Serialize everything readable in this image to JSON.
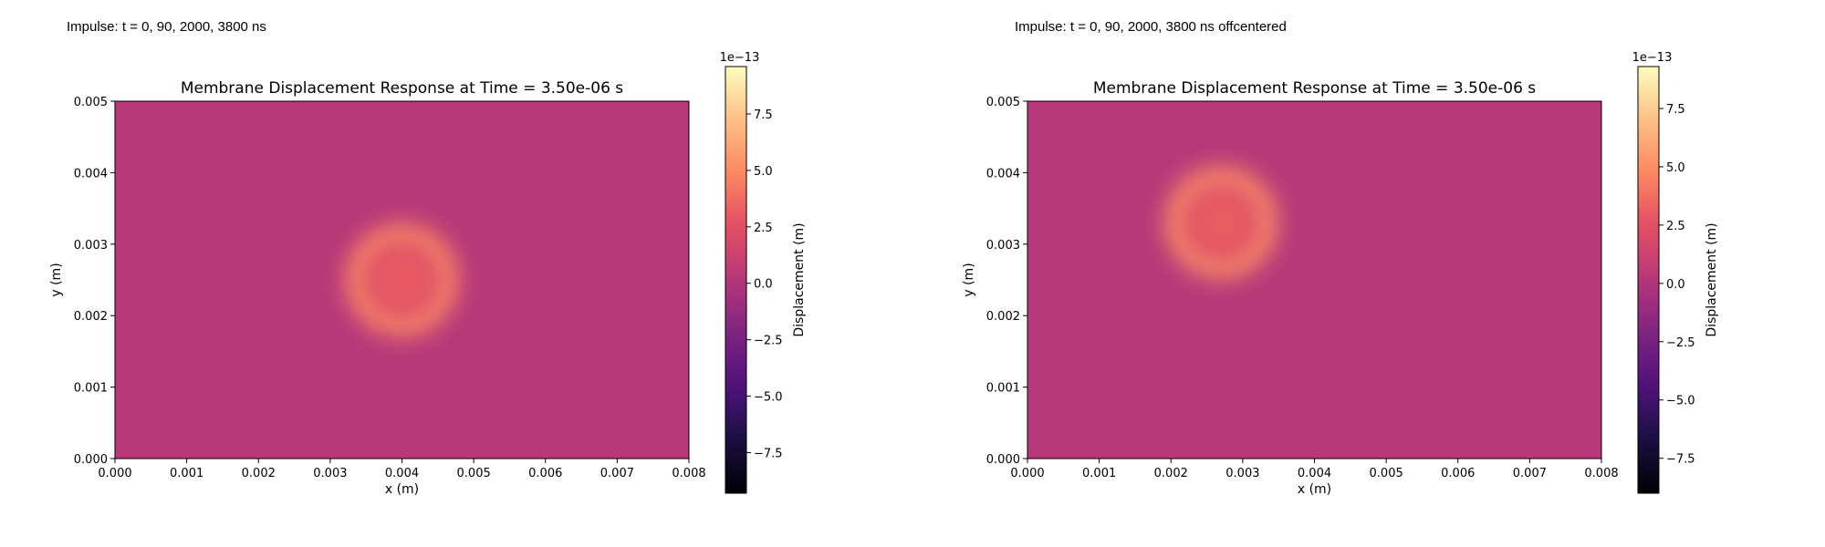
{
  "figure": {
    "captions": [
      "Impulse: t = 0, 90, 2000, 3800 ns",
      "Impulse: t = 0, 90, 2000, 3800 ns offcentered"
    ]
  },
  "chart_data": [
    {
      "type": "heatmap",
      "title": "Membrane Displacement Response at Time = 3.50e-06 s",
      "xlabel": "x (m)",
      "ylabel": "y (m)",
      "xlim": [
        0,
        0.008
      ],
      "ylim": [
        0,
        0.005
      ],
      "x_ticks": [
        "0.000",
        "0.001",
        "0.002",
        "0.003",
        "0.004",
        "0.005",
        "0.006",
        "0.007",
        "0.008"
      ],
      "y_ticks": [
        "0.000",
        "0.001",
        "0.002",
        "0.003",
        "0.004",
        "0.005"
      ],
      "colormap": "magma",
      "background_value": 0.3,
      "features": [
        {
          "shape": "ring",
          "center": [
            0.004,
            0.0025
          ],
          "radius": 0.0006,
          "width": 0.00035,
          "peak": 5.0
        },
        {
          "shape": "disk",
          "center": [
            0.004,
            0.0025
          ],
          "radius": 0.0006,
          "peak": 3.0
        }
      ],
      "colorbar": {
        "label": "Displacement (m)",
        "multiplier": "1e−13",
        "range": [
          -9.3,
          9.6
        ],
        "ticks": [
          "−7.5",
          "−5.0",
          "−2.5",
          "0.0",
          "2.5",
          "5.0",
          "7.5"
        ]
      }
    },
    {
      "type": "heatmap",
      "title": "Membrane Displacement Response at Time = 3.50e-06 s",
      "xlabel": "x (m)",
      "ylabel": "y (m)",
      "xlim": [
        0,
        0.008
      ],
      "ylim": [
        0,
        0.005
      ],
      "x_ticks": [
        "0.000",
        "0.001",
        "0.002",
        "0.003",
        "0.004",
        "0.005",
        "0.006",
        "0.007",
        "0.008"
      ],
      "y_ticks": [
        "0.000",
        "0.001",
        "0.002",
        "0.003",
        "0.004",
        "0.005"
      ],
      "colormap": "magma",
      "background_value": 0.3,
      "features": [
        {
          "shape": "ring",
          "center": [
            0.0027,
            0.0033
          ],
          "radius": 0.0006,
          "width": 0.00035,
          "peak": 5.0
        },
        {
          "shape": "disk",
          "center": [
            0.0027,
            0.0033
          ],
          "radius": 0.0006,
          "peak": 3.0
        }
      ],
      "colorbar": {
        "label": "Displacement (m)",
        "multiplier": "1e−13",
        "range": [
          -9.0,
          9.3
        ],
        "ticks": [
          "−7.5",
          "−5.0",
          "−2.5",
          "0.0",
          "2.5",
          "5.0",
          "7.5"
        ]
      }
    }
  ]
}
